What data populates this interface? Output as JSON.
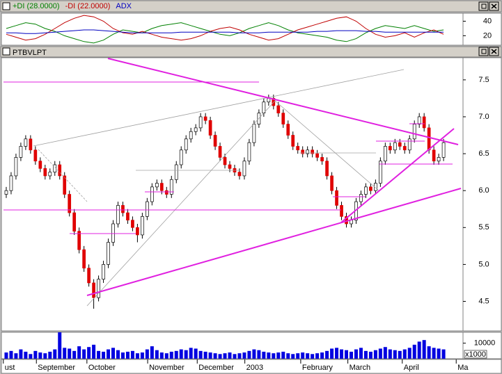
{
  "chart_data": [
    {
      "type": "line",
      "x": [
        0,
        2,
        4,
        6,
        8,
        10,
        12,
        14,
        16,
        18,
        20,
        22,
        24,
        26,
        28,
        30,
        32,
        34,
        36,
        38,
        40,
        42,
        44,
        46,
        48,
        50,
        52,
        54,
        56,
        58,
        60,
        62,
        64,
        66,
        68,
        70,
        72,
        74,
        76,
        78,
        80,
        82,
        84,
        86,
        88,
        90
      ],
      "series": [
        {
          "name": "+DI (28.0000)",
          "color": "#008000",
          "values": [
            30,
            34,
            38,
            36,
            30,
            26,
            20,
            16,
            12,
            10,
            14,
            22,
            28,
            26,
            24,
            30,
            34,
            36,
            38,
            34,
            30,
            26,
            22,
            20,
            24,
            30,
            34,
            38,
            34,
            28,
            24,
            22,
            20,
            18,
            14,
            12,
            16,
            24,
            30,
            34,
            32,
            30,
            34,
            30,
            26,
            28
          ]
        },
        {
          "name": "-DI (22.0000)",
          "color": "#c00000",
          "values": [
            22,
            18,
            14,
            16,
            22,
            30,
            38,
            44,
            48,
            46,
            40,
            30,
            24,
            22,
            26,
            22,
            18,
            16,
            14,
            16,
            20,
            26,
            30,
            32,
            28,
            22,
            18,
            14,
            16,
            22,
            28,
            32,
            36,
            40,
            44,
            46,
            40,
            30,
            22,
            18,
            20,
            24,
            18,
            24,
            28,
            22
          ]
        },
        {
          "name": "ADX",
          "color": "#0000c0",
          "values": [
            24,
            24,
            23,
            23,
            24,
            25,
            26,
            27,
            28,
            28,
            27,
            26,
            25,
            24,
            24,
            24,
            24,
            24,
            25,
            25,
            25,
            25,
            25,
            25,
            24,
            24,
            24,
            25,
            25,
            25,
            25,
            25,
            26,
            26,
            27,
            27,
            27,
            26,
            26,
            25,
            25,
            25,
            25,
            25,
            25,
            25
          ]
        }
      ],
      "ylim": [
        7,
        51
      ],
      "yticks": [
        40,
        20
      ]
    },
    {
      "type": "candlestick",
      "title": "PTBVLPT",
      "ohlc": [
        [
          5.95,
          6.05,
          5.9,
          6.0
        ],
        [
          6.0,
          6.25,
          5.95,
          6.2
        ],
        [
          6.2,
          6.5,
          6.15,
          6.45
        ],
        [
          6.45,
          6.65,
          6.4,
          6.6
        ],
        [
          6.6,
          6.75,
          6.55,
          6.7
        ],
        [
          6.7,
          6.75,
          6.5,
          6.55
        ],
        [
          6.55,
          6.6,
          6.35,
          6.4
        ],
        [
          6.4,
          6.45,
          6.25,
          6.3
        ],
        [
          6.3,
          6.35,
          6.15,
          6.2
        ],
        [
          6.2,
          6.3,
          6.15,
          6.25
        ],
        [
          6.25,
          6.4,
          6.2,
          6.35
        ],
        [
          6.35,
          6.4,
          6.15,
          6.2
        ],
        [
          6.2,
          6.25,
          5.9,
          5.95
        ],
        [
          5.95,
          6.0,
          5.65,
          5.7
        ],
        [
          5.7,
          5.75,
          5.4,
          5.45
        ],
        [
          5.45,
          5.5,
          5.15,
          5.2
        ],
        [
          5.2,
          5.25,
          4.9,
          4.95
        ],
        [
          4.95,
          5.0,
          4.7,
          4.75
        ],
        [
          4.75,
          4.8,
          4.4,
          4.55
        ],
        [
          4.55,
          4.85,
          4.5,
          4.8
        ],
        [
          4.8,
          5.05,
          4.75,
          5.0
        ],
        [
          5.0,
          5.35,
          4.95,
          5.3
        ],
        [
          5.3,
          5.6,
          5.25,
          5.55
        ],
        [
          5.55,
          5.85,
          5.5,
          5.8
        ],
        [
          5.8,
          5.85,
          5.65,
          5.7
        ],
        [
          5.7,
          5.75,
          5.55,
          5.6
        ],
        [
          5.6,
          5.65,
          5.45,
          5.5
        ],
        [
          5.5,
          5.55,
          5.3,
          5.4
        ],
        [
          5.4,
          5.7,
          5.35,
          5.65
        ],
        [
          5.65,
          5.9,
          5.6,
          5.85
        ],
        [
          5.85,
          6.1,
          5.8,
          6.05
        ],
        [
          6.05,
          6.15,
          6.0,
          6.1
        ],
        [
          6.1,
          6.15,
          5.95,
          6.0
        ],
        [
          6.0,
          6.05,
          5.9,
          5.95
        ],
        [
          5.95,
          6.2,
          5.9,
          6.15
        ],
        [
          6.15,
          6.4,
          6.1,
          6.35
        ],
        [
          6.35,
          6.6,
          6.3,
          6.55
        ],
        [
          6.55,
          6.75,
          6.5,
          6.7
        ],
        [
          6.7,
          6.85,
          6.65,
          6.8
        ],
        [
          6.8,
          6.9,
          6.75,
          6.85
        ],
        [
          6.85,
          7.05,
          6.8,
          7.0
        ],
        [
          7.0,
          7.05,
          6.9,
          6.95
        ],
        [
          6.95,
          7.0,
          6.7,
          6.75
        ],
        [
          6.75,
          6.8,
          6.55,
          6.6
        ],
        [
          6.6,
          6.65,
          6.4,
          6.45
        ],
        [
          6.45,
          6.5,
          6.3,
          6.35
        ],
        [
          6.35,
          6.4,
          6.25,
          6.3
        ],
        [
          6.3,
          6.35,
          6.2,
          6.25
        ],
        [
          6.25,
          6.3,
          6.15,
          6.2
        ],
        [
          6.2,
          6.45,
          6.15,
          6.4
        ],
        [
          6.4,
          6.7,
          6.35,
          6.65
        ],
        [
          6.65,
          6.95,
          6.6,
          6.9
        ],
        [
          6.9,
          7.1,
          6.85,
          7.05
        ],
        [
          7.05,
          7.25,
          7.0,
          7.2
        ],
        [
          7.2,
          7.3,
          7.15,
          7.25
        ],
        [
          7.25,
          7.3,
          7.1,
          7.15
        ],
        [
          7.15,
          7.2,
          7.0,
          7.05
        ],
        [
          7.05,
          7.1,
          6.85,
          6.9
        ],
        [
          6.9,
          6.95,
          6.7,
          6.75
        ],
        [
          6.75,
          6.8,
          6.55,
          6.6
        ],
        [
          6.6,
          6.65,
          6.5,
          6.55
        ],
        [
          6.55,
          6.6,
          6.45,
          6.5
        ],
        [
          6.5,
          6.6,
          6.45,
          6.55
        ],
        [
          6.55,
          6.6,
          6.45,
          6.5
        ],
        [
          6.5,
          6.55,
          6.4,
          6.45
        ],
        [
          6.45,
          6.5,
          6.35,
          6.4
        ],
        [
          6.4,
          6.45,
          6.15,
          6.2
        ],
        [
          6.2,
          6.25,
          5.95,
          6.0
        ],
        [
          6.0,
          6.05,
          5.75,
          5.8
        ],
        [
          5.8,
          5.85,
          5.6,
          5.65
        ],
        [
          5.65,
          5.7,
          5.5,
          5.55
        ],
        [
          5.55,
          5.65,
          5.5,
          5.6
        ],
        [
          5.6,
          5.9,
          5.55,
          5.85
        ],
        [
          5.85,
          6.0,
          5.8,
          5.95
        ],
        [
          5.95,
          6.1,
          5.9,
          6.05
        ],
        [
          6.05,
          6.1,
          5.95,
          6.0
        ],
        [
          6.0,
          6.15,
          5.95,
          6.1
        ],
        [
          6.1,
          6.45,
          6.05,
          6.4
        ],
        [
          6.4,
          6.65,
          6.35,
          6.6
        ],
        [
          6.6,
          6.65,
          6.5,
          6.55
        ],
        [
          6.55,
          6.7,
          6.5,
          6.65
        ],
        [
          6.65,
          6.7,
          6.55,
          6.6
        ],
        [
          6.6,
          6.65,
          6.5,
          6.55
        ],
        [
          6.55,
          6.75,
          6.5,
          6.7
        ],
        [
          6.7,
          6.95,
          6.65,
          6.9
        ],
        [
          6.9,
          7.05,
          6.85,
          7.0
        ],
        [
          7.0,
          7.05,
          6.8,
          6.85
        ],
        [
          6.85,
          6.9,
          6.5,
          6.55
        ],
        [
          6.55,
          6.6,
          6.35,
          6.4
        ],
        [
          6.4,
          6.5,
          6.35,
          6.45
        ],
        [
          6.45,
          6.7,
          6.4,
          6.65
        ]
      ],
      "up_color": "#ffffff",
      "down_color": "#e00000",
      "xlim": [
        -1,
        94
      ],
      "ylim": [
        4.1,
        7.8
      ],
      "yticks": [
        4.5,
        {
          "value": 5,
          "label": "5.0"
        },
        5.5,
        {
          "value": 6,
          "label": "6.0"
        },
        6.5,
        {
          "value": 7,
          "label": "7.0"
        },
        7.5
      ]
    },
    {
      "type": "bar",
      "values": [
        4000,
        5000,
        3500,
        6000,
        4500,
        3000,
        5000,
        4000,
        3500,
        4500,
        6000,
        17000,
        7000,
        6500,
        5000,
        8000,
        6000,
        7500,
        9000,
        5000,
        4500,
        6000,
        7000,
        5500,
        4000,
        4500,
        5000,
        3500,
        4000,
        6000,
        8000,
        5500,
        4000,
        3500,
        4500,
        5000,
        6000,
        5500,
        7000,
        6500,
        5000,
        4500,
        4000,
        3500,
        3000,
        3500,
        4000,
        3000,
        3500,
        4000,
        5000,
        6000,
        5500,
        4500,
        4000,
        3500,
        4000,
        4500,
        3500,
        3000,
        3500,
        4000,
        3500,
        3000,
        3500,
        4000,
        5000,
        6500,
        7000,
        6000,
        5500,
        4500,
        6000,
        7000,
        5000,
        4500,
        5500,
        6500,
        7500,
        6000,
        5500,
        5000,
        6000,
        7000,
        9000,
        11000,
        12000,
        8000,
        7000,
        6500,
        6000
      ],
      "color": "#0000e0",
      "xlim": [
        -1,
        94
      ],
      "ylim": [
        0,
        17000
      ],
      "yticks": [
        {
          "value": 10000,
          "label": "10000"
        }
      ],
      "unit_label": "x1000",
      "xticks": [
        {
          "value": -0.6,
          "label": "ust"
        },
        {
          "value": 6.2,
          "label": "September"
        },
        {
          "value": 16.6,
          "label": "October"
        },
        {
          "value": 29.1,
          "label": "November"
        },
        {
          "value": 39.3,
          "label": "December"
        },
        {
          "value": 49.1,
          "label": "2003"
        },
        {
          "value": 60.6,
          "label": "February"
        },
        {
          "value": 70.3,
          "label": "March"
        },
        {
          "value": 81.5,
          "label": "April"
        },
        {
          "value": 92.6,
          "label": "Ma"
        }
      ]
    }
  ]
}
